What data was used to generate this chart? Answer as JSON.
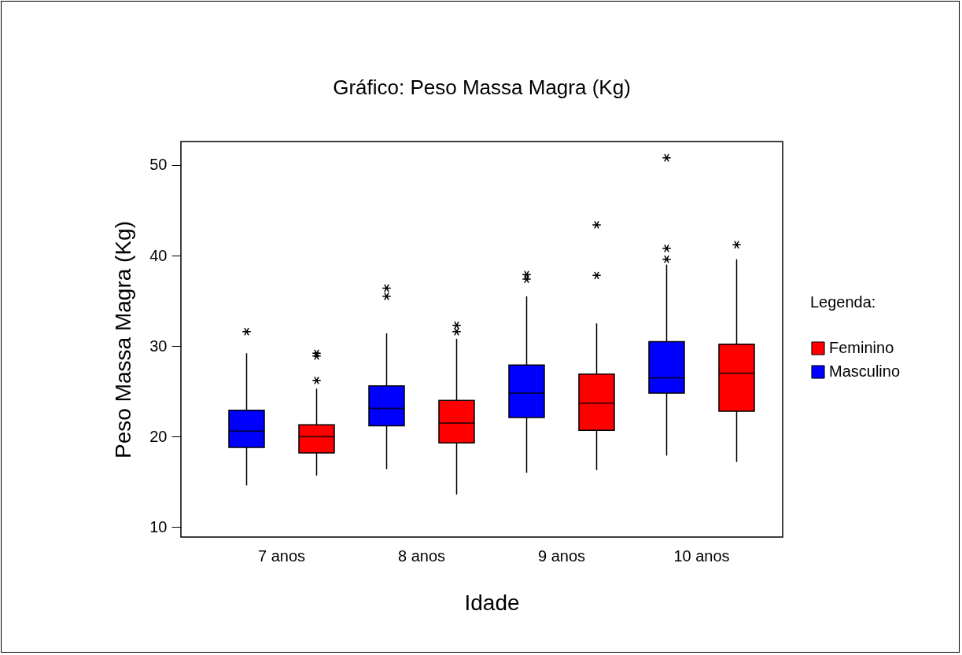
{
  "chart_data": {
    "type": "box",
    "title": "Gráfico: Peso Massa Magra (Kg)",
    "xlabel": "Idade",
    "ylabel": "Peso Massa Magra (Kg)",
    "legend_title": "Legenda:",
    "categories": [
      "7 anos",
      "8 anos",
      "9 anos",
      "10 anos"
    ],
    "ylim": [
      8.9,
      52.6
    ],
    "yticks": [
      10,
      20,
      30,
      40,
      50
    ],
    "grid": false,
    "legend": "right",
    "series": [
      {
        "name": "Masculino",
        "color": "#0000ff",
        "boxes": [
          {
            "low": 14.6,
            "q1": 18.8,
            "median": 20.6,
            "q3": 22.9,
            "high": 29.2,
            "outliers": [
              31.6
            ]
          },
          {
            "low": 16.4,
            "q1": 21.2,
            "median": 23.1,
            "q3": 25.6,
            "high": 31.4,
            "outliers": [
              36.4,
              35.5
            ]
          },
          {
            "low": 16.0,
            "q1": 22.1,
            "median": 24.8,
            "q3": 27.9,
            "high": 35.5,
            "outliers": [
              37.9,
              37.4
            ]
          },
          {
            "low": 17.9,
            "q1": 24.8,
            "median": 26.5,
            "q3": 30.5,
            "high": 39.0,
            "outliers": [
              50.8,
              40.8,
              39.6
            ]
          }
        ]
      },
      {
        "name": "Feminino",
        "color": "#ff0000",
        "boxes": [
          {
            "low": 15.7,
            "q1": 18.2,
            "median": 20.0,
            "q3": 21.3,
            "high": 25.3,
            "outliers": [
              29.2,
              28.9,
              26.2
            ]
          },
          {
            "low": 13.6,
            "q1": 19.3,
            "median": 21.5,
            "q3": 24.0,
            "high": 30.8,
            "outliers": [
              32.3,
              31.6
            ]
          },
          {
            "low": 16.3,
            "q1": 20.7,
            "median": 23.7,
            "q3": 26.9,
            "high": 32.5,
            "outliers": [
              43.4,
              37.8
            ]
          },
          {
            "low": 17.2,
            "q1": 22.8,
            "median": 27.0,
            "q3": 30.2,
            "high": 39.6,
            "outliers": [
              41.2
            ]
          }
        ]
      }
    ]
  }
}
